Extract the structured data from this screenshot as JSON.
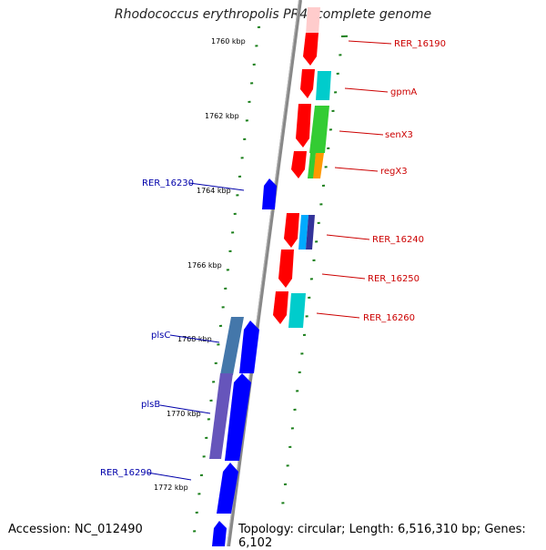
{
  "title": "Rhodococcus erythropolis PR4, complete genome",
  "footer": {
    "accession_label": "Accession:",
    "accession": "NC_012490",
    "topology_label": "Topology:",
    "topology": "circular",
    "length_label": "Length:",
    "length": "6,516,310 bp",
    "genes_label": "Genes:",
    "genes": "6,102"
  },
  "colors": {
    "backbone": "#888888",
    "ticks": "#1a7f1a",
    "forward_label": "#cc0000",
    "reverse_label": "#0000aa",
    "red": "#ff0000",
    "blue": "#0000ff",
    "cyan": "#00cccc",
    "green": "#33cc33",
    "orange": "#ff9900",
    "lightblue": "#00aaff",
    "navy": "#333399",
    "steel": "#4477aa",
    "purple": "#6655bb",
    "pink": "#ffcccc"
  },
  "scale": {
    "labels": [
      "1760 kbp",
      "1762 kbp",
      "1764 kbp",
      "1766 kbp",
      "1768 kbp",
      "1770 kbp",
      "1772 kbp"
    ]
  },
  "labels": {
    "forward": [
      "RER_16190",
      "gpmA",
      "senX3",
      "regX3",
      "RER_16240",
      "RER_16250",
      "RER_16260"
    ],
    "reverse": [
      "RER_16230",
      "plsC",
      "plsB",
      "RER_16290"
    ]
  }
}
